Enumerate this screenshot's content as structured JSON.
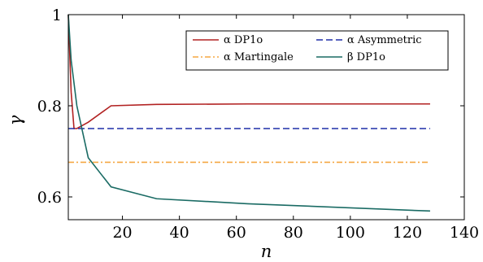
{
  "chart_data": {
    "type": "line",
    "title": "",
    "xlabel": "n",
    "ylabel": "γ",
    "xlim": [
      1,
      140
    ],
    "ylim": [
      0.55,
      1.0
    ],
    "xticks": [
      20,
      40,
      60,
      80,
      100,
      120,
      140
    ],
    "yticks": [
      0.6,
      0.8,
      1.0
    ],
    "ytick_labels": [
      "0.6",
      "0.8",
      "1"
    ],
    "grid": false,
    "legend_position": "top-right",
    "series": [
      {
        "name": "α DP1o",
        "color": "#b22222",
        "dash": "solid",
        "points": [
          [
            1,
            1.0
          ],
          [
            2,
            0.83
          ],
          [
            3,
            0.75
          ],
          [
            4,
            0.75
          ],
          [
            8,
            0.764
          ],
          [
            16,
            0.8
          ],
          [
            32,
            0.803
          ],
          [
            64,
            0.804
          ],
          [
            128,
            0.804
          ]
        ]
      },
      {
        "name": "α Asymmetric",
        "color": "#1f2fa8",
        "dash": "dashed",
        "points": [
          [
            1,
            0.75
          ],
          [
            128,
            0.75
          ]
        ]
      },
      {
        "name": "α Martingale",
        "color": "#f5a742",
        "dash": "dashdot",
        "points": [
          [
            1,
            0.676
          ],
          [
            128,
            0.676
          ]
        ]
      },
      {
        "name": "β DP1o",
        "color": "#1a6b64",
        "dash": "solid",
        "points": [
          [
            1,
            1.0
          ],
          [
            2,
            0.9
          ],
          [
            4,
            0.8
          ],
          [
            8,
            0.686
          ],
          [
            16,
            0.622
          ],
          [
            32,
            0.596
          ],
          [
            64,
            0.585
          ],
          [
            128,
            0.569
          ]
        ]
      }
    ]
  }
}
